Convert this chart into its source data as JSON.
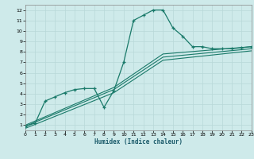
{
  "xlabel": "Humidex (Indice chaleur)",
  "bg_color": "#ceeaea",
  "grid_color": "#b8d8d8",
  "line_color": "#1a7a6a",
  "xlim": [
    0,
    23
  ],
  "ylim": [
    0.5,
    12.5
  ],
  "xticks": [
    0,
    1,
    2,
    3,
    4,
    5,
    6,
    7,
    8,
    9,
    10,
    11,
    12,
    13,
    14,
    15,
    16,
    17,
    18,
    19,
    20,
    21,
    22,
    23
  ],
  "yticks": [
    1,
    2,
    3,
    4,
    5,
    6,
    7,
    8,
    9,
    10,
    11,
    12
  ],
  "main_line_x": [
    0,
    1,
    2,
    3,
    4,
    5,
    6,
    7,
    8,
    9,
    10,
    11,
    12,
    13,
    14,
    15,
    16,
    17,
    18,
    19,
    20,
    21,
    22,
    23
  ],
  "main_line_y": [
    0.9,
    1.2,
    3.3,
    3.7,
    4.1,
    4.4,
    4.5,
    4.5,
    2.7,
    4.3,
    7.0,
    11.0,
    11.5,
    12.0,
    12.0,
    10.3,
    9.5,
    8.5,
    8.5,
    8.3,
    8.3,
    8.3,
    8.4,
    8.5
  ],
  "trend1_x": [
    0,
    9,
    14,
    23
  ],
  "trend1_y": [
    1.0,
    4.6,
    7.8,
    8.5
  ],
  "trend2_x": [
    0,
    9,
    14,
    23
  ],
  "trend2_y": [
    0.9,
    4.4,
    7.5,
    8.3
  ],
  "trend3_x": [
    0,
    9,
    14,
    23
  ],
  "trend3_y": [
    0.7,
    4.1,
    7.2,
    8.1
  ]
}
